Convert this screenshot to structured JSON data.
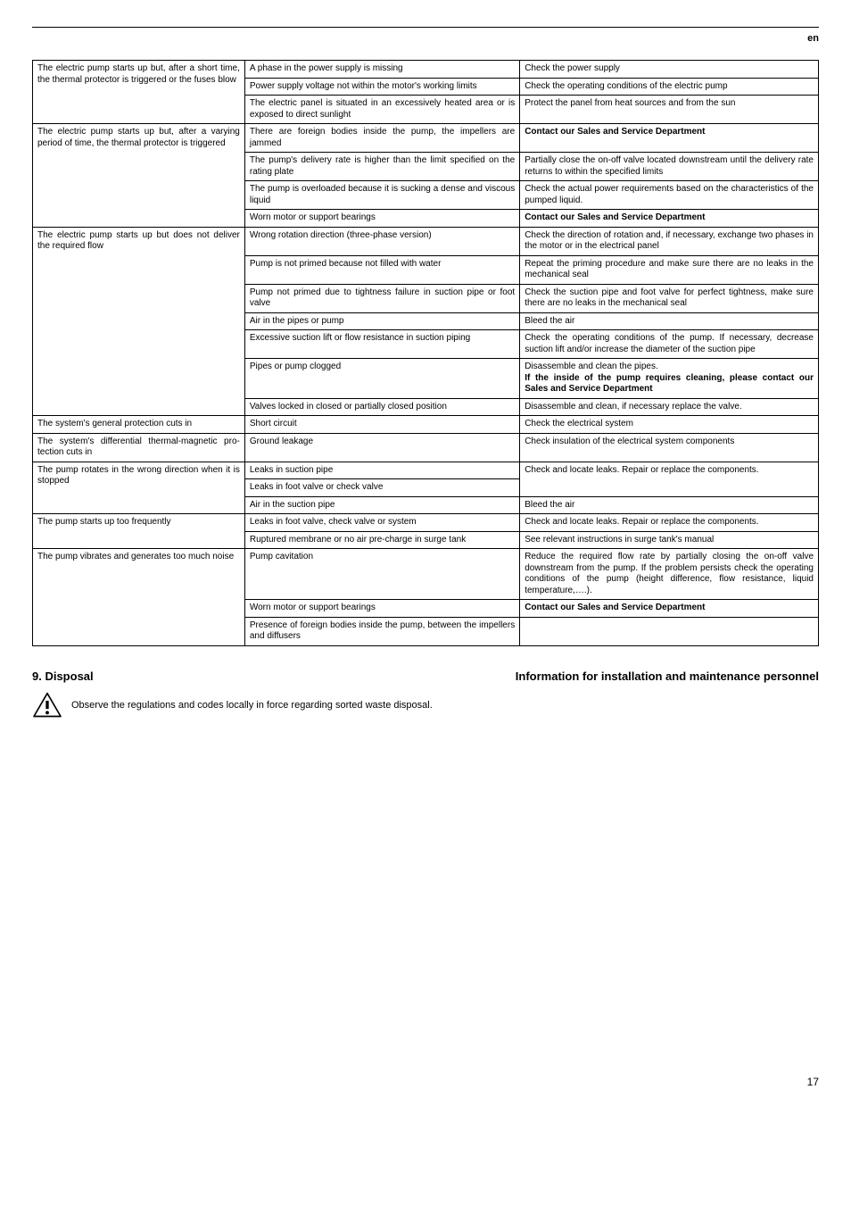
{
  "lang_label": "en",
  "page_number": "17",
  "table": {
    "rows": [
      {
        "c1": "The electric pump starts up but, after a short time, the thermal protector is triggered or the fuses blow",
        "c1_rowspan": 3,
        "c2": "A phase in the power supply is missing",
        "c3": "Check the power supply"
      },
      {
        "c2": "Power supply voltage not within the motor's working limits",
        "c3": "Check the operating conditions of the electric pump"
      },
      {
        "c2": "The electric panel is situated in an excessively hea­ted area or is exposed to direct sunlight",
        "c3": "Protect the panel from heat sources and from the sun"
      },
      {
        "c1": "The electric pump starts up but, after a varying period of time, the thermal protector is trigge­red",
        "c1_rowspan": 4,
        "c2": "There are foreign bodies inside the pump, the impellers are jammed",
        "c3": "Contact our Sales and Service Department",
        "c3_bold": true
      },
      {
        "c2": "The pump's delivery rate is higher than the limit spe­cified on the rating plate",
        "c3": "Partially close the on-off valve located downstream until the delivery rate returns to within the specified limits"
      },
      {
        "c2": "The pump is overloaded because it is sucking a dense and viscous liquid",
        "c3": "Check the actual power requirements based on the characteristics of the pumped liquid."
      },
      {
        "c2": "Worn motor or support bearings",
        "c3": "Contact our Sales and Service Department",
        "c3_bold": true
      },
      {
        "c1": "The electric pump starts up but does not deli­ver the required flow",
        "c1_rowspan": 7,
        "c2": "Wrong rotation direction (three-phase version)",
        "c3": "Check the direction of rotation and, if necessary, exchange two phases in the motor or in the electri­cal panel"
      },
      {
        "c2": "Pump is not primed because not filled with water",
        "c3": "Repeat the priming procedure and make sure there are no leaks in the mechanical seal"
      },
      {
        "c2": "Pump not primed due to tightness failure in suction pipe or foot valve",
        "c3": "Check the suction pipe and foot valve for perfect tightness, make sure there are no leaks in the mechanical seal"
      },
      {
        "c2": "Air in the pipes or pump",
        "c3": "Bleed the air"
      },
      {
        "c2": "Excessive suction lift or flow resistance in suction piping",
        "c3": "Check the operating conditions of the pump. If necessary, decrease suction lift and/or increase the diameter of the suction pipe"
      },
      {
        "c2": "Pipes or pump clogged",
        "c3_html": "Disassemble and clean the pipes.<br><span class=\"bold\">If the inside of the pump requires cleaning, plea­se contact our Sales and Service Department</span>"
      },
      {
        "c2": "Valves locked in closed or partially closed position",
        "c3": "Disassemble and clean, if necessary replace the valve."
      },
      {
        "c1": "The system's general protection cuts in",
        "c2": "Short circuit",
        "c3": "Check the electrical system"
      },
      {
        "c1": "The system's differential thermal-magnetic pro­tection cuts in",
        "c2": "Ground leakage",
        "c3": "Check insulation of the electrical system compo­nents"
      },
      {
        "c1": "The pump rotates in the wrong direction when it is stopped",
        "c1_rowspan": 3,
        "c2": "Leaks in suction pipe",
        "c3": "Check and locate leaks. Repair or replace the com­ponents.",
        "c3_rowspan": 2
      },
      {
        "c2": "Leaks in foot valve or check valve"
      },
      {
        "c2": "Air in the suction pipe",
        "c3": "Bleed the air"
      },
      {
        "c1": "The pump starts up too frequently",
        "c1_rowspan": 2,
        "c2": "Leaks in foot valve, check valve or system",
        "c3": "Check and locate leaks. Repair or replace the com­ponents."
      },
      {
        "c2": "Ruptured membrane or no air pre-charge in surge tank",
        "c3": "See relevant instructions in surge tank's manual"
      },
      {
        "c1": "The pump vibrates and generates too much noise",
        "c1_rowspan": 3,
        "c2": "Pump cavitation",
        "c3": "Reduce the required flow rate by partially closing the on-off valve downstream from the pump. If the problem persists check the operating conditions of the pump (height difference, flow resistance, liquid temperature,….)."
      },
      {
        "c2": "Worn motor or support bearings",
        "c3": "Contact our Sales and Service Department",
        "c3_bold": true
      },
      {
        "c2": "Presence of foreign bodies inside the pump, between the impellers and diffusers",
        "c3": ""
      }
    ]
  },
  "section": {
    "number_title": "9.  Disposal",
    "subtitle": "Information for installation and maintenance personnel",
    "warning_text": "Observe the regulations and codes locally in force regarding sorted waste disposal."
  }
}
